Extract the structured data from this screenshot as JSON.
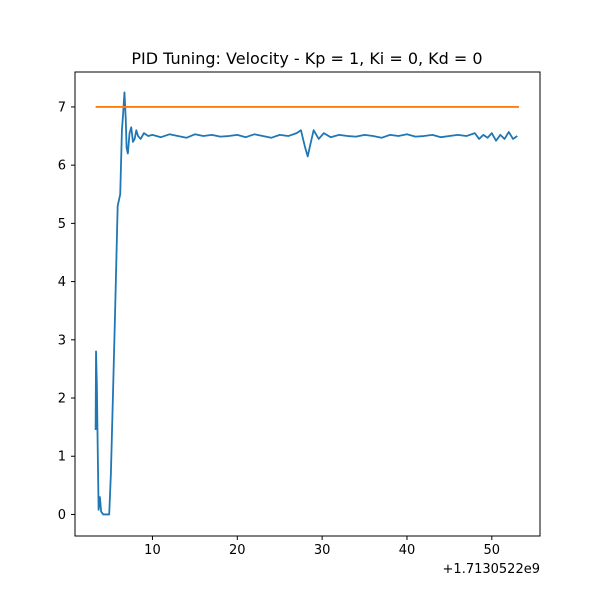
{
  "chart_data": {
    "type": "line",
    "title": "PID Tuning: Velocity - Kp = 1, Ki = 0, Kd = 0",
    "xlabel": "",
    "ylabel": "",
    "x_offset_label": "+1.7130522e9",
    "xlim": [
      0.87,
      55.68
    ],
    "ylim": [
      -0.37,
      7.6
    ],
    "grid": false,
    "x_ticks": [
      10,
      20,
      30,
      40,
      50
    ],
    "y_ticks": [
      0,
      1,
      2,
      3,
      4,
      5,
      6,
      7
    ],
    "colors": {
      "series_measured": "#1f77b4",
      "series_setpoint": "#ff7f0e",
      "axes": "#000000",
      "background": "#ffffff"
    },
    "series": [
      {
        "x": [
          3.3,
          3.35,
          3.45,
          3.55,
          3.65,
          3.8,
          3.95,
          4.2,
          4.5,
          4.9,
          5.1,
          5.3,
          5.6,
          5.9,
          6.2,
          6.4,
          6.55,
          6.7,
          6.85,
          6.95,
          7.1,
          7.3,
          7.5,
          7.7,
          7.9,
          8.1,
          8.3,
          8.6,
          9.0,
          9.5,
          10,
          11,
          12,
          13,
          14,
          15,
          16,
          17,
          18,
          19,
          20,
          21,
          22,
          23,
          24,
          25,
          26,
          27,
          27.5,
          28.0,
          28.3,
          28.6,
          29,
          29.6,
          30.2,
          31,
          32,
          33,
          34,
          35,
          36,
          37,
          38,
          39,
          40,
          41,
          42,
          43,
          44,
          45,
          46,
          47,
          48,
          48.5,
          49,
          49.5,
          50,
          50.5,
          51,
          51.5,
          52,
          52.5,
          53
        ],
        "values": [
          1.45,
          2.8,
          2.2,
          1.1,
          0.08,
          0.3,
          0.05,
          0.0,
          0.0,
          0.0,
          0.7,
          1.8,
          3.5,
          5.3,
          5.5,
          6.6,
          6.9,
          7.25,
          6.8,
          6.3,
          6.2,
          6.55,
          6.65,
          6.4,
          6.45,
          6.6,
          6.5,
          6.45,
          6.55,
          6.5,
          6.52,
          6.48,
          6.53,
          6.5,
          6.47,
          6.53,
          6.5,
          6.52,
          6.49,
          6.5,
          6.52,
          6.48,
          6.53,
          6.5,
          6.47,
          6.52,
          6.5,
          6.55,
          6.6,
          6.3,
          6.15,
          6.35,
          6.6,
          6.45,
          6.55,
          6.48,
          6.52,
          6.5,
          6.49,
          6.52,
          6.5,
          6.47,
          6.52,
          6.5,
          6.53,
          6.49,
          6.5,
          6.52,
          6.48,
          6.5,
          6.52,
          6.5,
          6.55,
          6.45,
          6.52,
          6.47,
          6.55,
          6.42,
          6.52,
          6.45,
          6.57,
          6.45,
          6.5
        ]
      },
      {
        "x": [
          3.3,
          53.2
        ],
        "values": [
          7.0,
          7.0
        ]
      }
    ]
  }
}
